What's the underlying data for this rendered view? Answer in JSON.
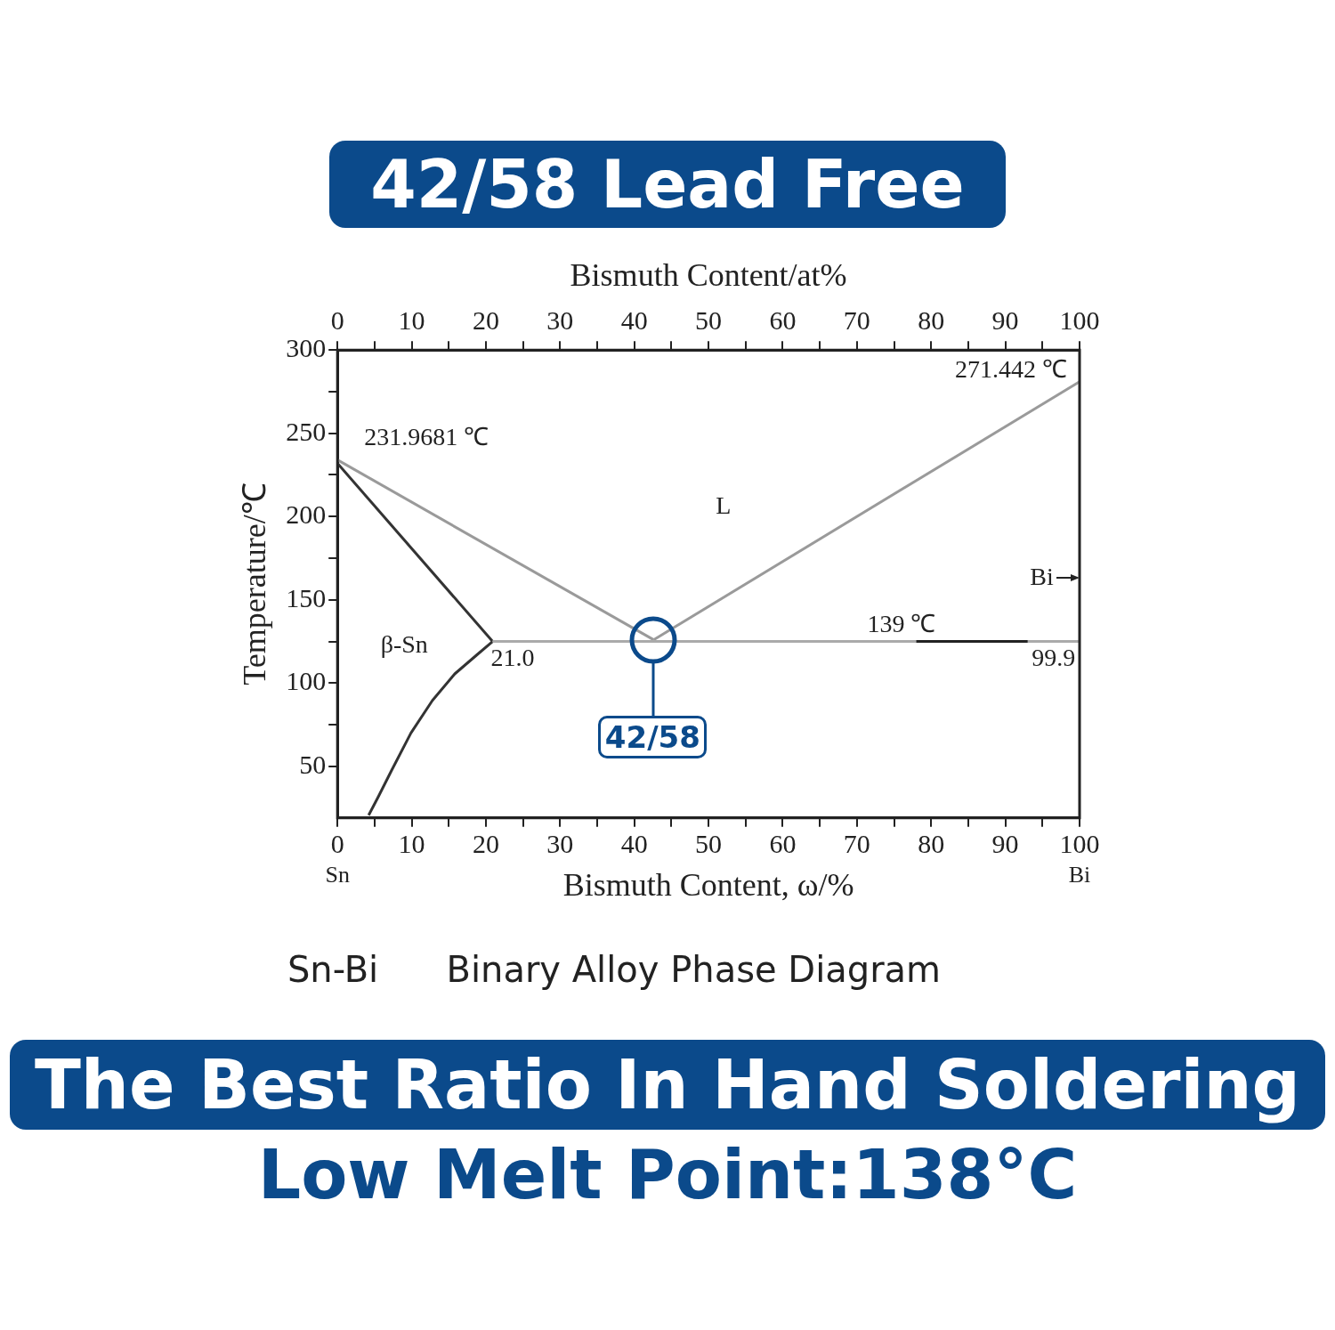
{
  "chart_data": {
    "type": "line",
    "title": "42/58 Lead Free",
    "subtitle": "The Best Ratio In Hand Soldering",
    "xlabel": "Bismuth Content, ω/%",
    "x2label": "Bismuth Content/at%",
    "ylabel": "Temperature/℃",
    "xlim": [
      0,
      100
    ],
    "xticks": [
      0,
      {
        "value": 5,
        "label": null
      },
      10,
      {
        "value": 15,
        "label": null
      },
      20,
      {
        "value": 25,
        "label": null
      },
      30,
      {
        "value": 35,
        "label": null
      },
      40,
      {
        "value": 45,
        "label": null
      },
      50,
      {
        "value": 55,
        "label": null
      },
      60,
      {
        "value": 65,
        "label": null
      },
      70,
      {
        "value": 75,
        "label": null
      },
      80,
      {
        "value": 85,
        "label": null
      },
      90,
      {
        "value": 95,
        "label": null
      },
      100
    ],
    "x2lim": [
      0,
      100
    ],
    "x2ticks": [
      0,
      {
        "value": 5,
        "label": null
      },
      10,
      {
        "value": 15,
        "label": null
      },
      20,
      {
        "value": 25,
        "label": null
      },
      30,
      {
        "value": 35,
        "label": null
      },
      40,
      {
        "value": 45,
        "label": null
      },
      50,
      {
        "value": 55,
        "label": null
      },
      60,
      {
        "value": 65,
        "label": null
      },
      70,
      {
        "value": 75,
        "label": null
      },
      80,
      {
        "value": 85,
        "label": null
      },
      90,
      {
        "value": 95,
        "label": null
      },
      100
    ],
    "ylim": [
      19,
      300
    ],
    "yticks": [
      50,
      {
        "value": 75,
        "label": null
      },
      100,
      {
        "value": 125,
        "label": null
      },
      150,
      {
        "value": 175,
        "label": null
      },
      200,
      {
        "value": 225,
        "label": null
      },
      250,
      {
        "value": 275,
        "label": null
      },
      300
    ],
    "grid": false,
    "legend": false,
    "marker": "none",
    "line_style": "solid",
    "series": [
      {
        "type": "line",
        "color": "#9a9a9a",
        "x": [
          0,
          42.6
        ],
        "values": [
          234,
          126
        ]
      },
      {
        "type": "line",
        "color": "#9a9a9a",
        "x": [
          42.6,
          100
        ],
        "values": [
          126,
          281
        ]
      },
      {
        "type": "line",
        "color": "#333333",
        "x": [
          0,
          20.9
        ],
        "values": [
          232,
          125
        ]
      },
      {
        "type": "line",
        "color": "#333333",
        "x": [
          20.9,
          18.8,
          15.8,
          12.8,
          9.9,
          7.3,
          5.5,
          4.2
        ],
        "values": [
          125,
          117,
          105.5,
          89.6,
          70,
          47.6,
          31.7,
          20.6
        ]
      },
      {
        "type": "line",
        "color": "#aaaaaa",
        "x": [
          20.9,
          100
        ],
        "values": [
          125,
          125
        ]
      },
      {
        "type": "line",
        "color": "#222222",
        "x": [
          78,
          93
        ],
        "values": [
          125,
          125
        ]
      }
    ],
    "annotations": [
      "Sn",
      "Bi",
      "Sn-Bi      Binary Alloy Phase Diagram",
      "Low Melt Point:138°C",
      "L",
      "β-Sn",
      "Bi",
      {
        "text": "231.9681 ℃",
        "x": 0,
        "y": 234
      },
      {
        "text": "271.442 ℃",
        "x": 100,
        "y": 281
      },
      {
        "text": "21.0",
        "x": 20.9,
        "y": 125
      },
      {
        "text": "139 ℃",
        "x": 76,
        "y": 125
      },
      {
        "text": "99.9",
        "x": 99.9,
        "y": 125
      },
      {
        "text": "42/58",
        "x": 42.6,
        "y": 126
      }
    ]
  }
}
